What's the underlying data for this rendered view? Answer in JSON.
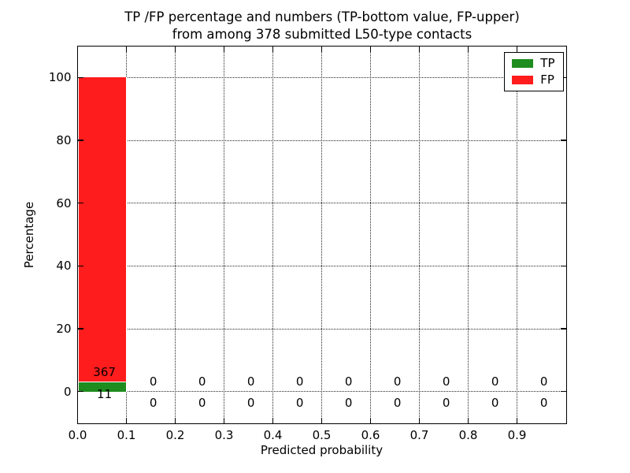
{
  "title": {
    "line1": "TP /FP percentage and numbers (TP-bottom value, FP-upper)",
    "line2": "from among 378 submitted L50-type contacts"
  },
  "axes": {
    "xlabel": "Predicted probability",
    "ylabel": "Percentage",
    "xtick_labels": [
      "0.0",
      "0.1",
      "0.2",
      "0.3",
      "0.4",
      "0.5",
      "0.6",
      "0.7",
      "0.8",
      "0.9"
    ],
    "ytick_labels": [
      "0",
      "20",
      "40",
      "60",
      "80",
      "100"
    ]
  },
  "legend": {
    "items": [
      {
        "label": "TP",
        "color": "#1f8c1f"
      },
      {
        "label": "FP",
        "color": "#ff1c1c"
      }
    ]
  },
  "chart_data": {
    "type": "bar",
    "stacked": true,
    "title": "TP /FP percentage and numbers (TP-bottom value, FP-upper) from among 378 submitted L50-type contacts",
    "xlabel": "Predicted probability",
    "ylabel": "Percentage",
    "total_contacts": 378,
    "bin_centers": [
      0.05,
      0.15,
      0.25,
      0.35,
      0.45,
      0.55,
      0.65,
      0.75,
      0.85,
      0.95
    ],
    "bin_width": 0.1,
    "series": [
      {
        "name": "TP",
        "color": "#1f8c1f",
        "counts": [
          11,
          0,
          0,
          0,
          0,
          0,
          0,
          0,
          0,
          0
        ],
        "percentages": [
          2.91,
          0,
          0,
          0,
          0,
          0,
          0,
          0,
          0,
          0
        ]
      },
      {
        "name": "FP",
        "color": "#ff1c1c",
        "counts": [
          367,
          0,
          0,
          0,
          0,
          0,
          0,
          0,
          0,
          0
        ],
        "percentages": [
          97.09,
          0,
          0,
          0,
          0,
          0,
          0,
          0,
          0,
          0
        ]
      }
    ],
    "xlim": [
      0,
      1.0
    ],
    "ylim": [
      -10,
      110
    ],
    "xticks": [
      0,
      0.1,
      0.2,
      0.3,
      0.4,
      0.5,
      0.6,
      0.7,
      0.8,
      0.9
    ],
    "yticks": [
      0,
      20,
      40,
      60,
      80,
      100
    ],
    "grid": "dotted",
    "legend_position": "upper right"
  }
}
